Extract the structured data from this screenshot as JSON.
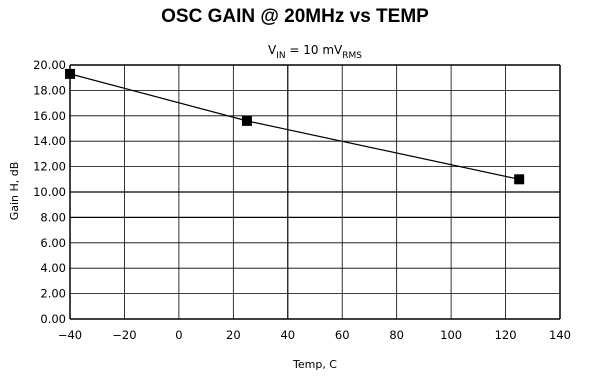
{
  "chart_data": {
    "type": "line",
    "title": "OSC GAIN @ 20MHz vs TEMP",
    "subtitle": {
      "prefix": "V",
      "prefix_sub": "IN",
      "middle": " = 10 mV",
      "suffix_sub": "RMS"
    },
    "xlabel": "Temp, C",
    "ylabel": "Gain H, dB",
    "xlim": [
      -40,
      140
    ],
    "ylim": [
      0,
      20
    ],
    "x_ticks": [
      "-40",
      "-20",
      "0",
      "20",
      "40",
      "60",
      "80",
      "100",
      "120",
      "140"
    ],
    "y_ticks": [
      "0.00",
      "2.00",
      "4.00",
      "6.00",
      "8.00",
      "10.00",
      "12.00",
      "14.00",
      "16.00",
      "18.00",
      "20.00"
    ],
    "grid": true,
    "series": [
      {
        "x": [
          -40,
          25,
          125
        ],
        "y": [
          19.3,
          15.6,
          11.0
        ],
        "marker": "square",
        "color": "#000000"
      }
    ]
  }
}
